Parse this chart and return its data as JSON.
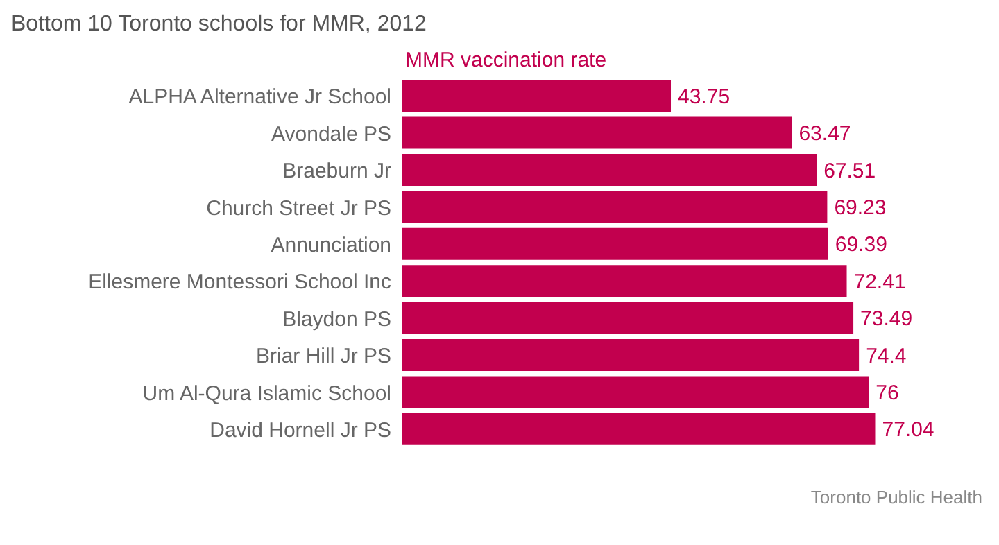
{
  "chart_data": {
    "type": "bar",
    "orientation": "horizontal",
    "title": "Bottom 10 Toronto schools for MMR, 2012",
    "categories": [
      "ALPHA Alternative Jr School",
      "Avondale PS",
      "Braeburn Jr",
      "Church Street Jr PS",
      "Annunciation",
      "Ellesmere Montessori School Inc",
      "Blaydon PS",
      "Briar Hill Jr PS",
      "Um Al-Qura Islamic School",
      "David Hornell Jr PS"
    ],
    "series": [
      {
        "name": "MMR vaccination rate",
        "color": "#c2004e",
        "values": [
          43.75,
          63.47,
          67.51,
          69.23,
          69.39,
          72.41,
          73.49,
          74.4,
          76,
          77.04
        ]
      }
    ],
    "data_labels": true,
    "legend": "top left",
    "grid": false,
    "annotations": [
      "Toronto Public Health"
    ]
  }
}
